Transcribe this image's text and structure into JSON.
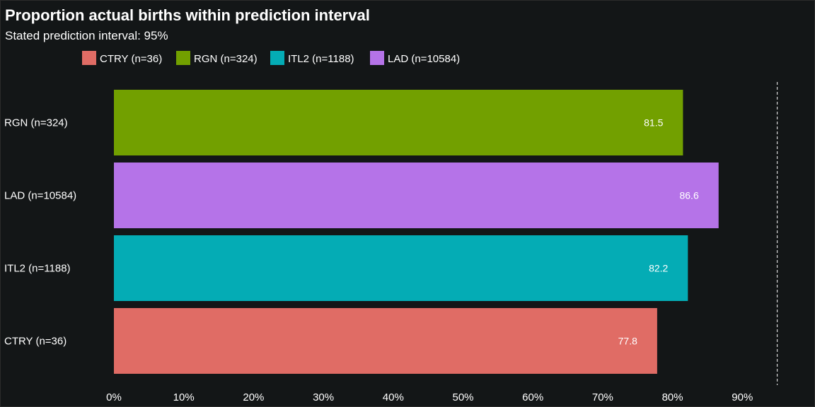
{
  "header": {
    "title": "Proportion actual births within prediction interval",
    "subtitle": "Stated prediction interval: 95%"
  },
  "chart_data": {
    "type": "bar",
    "orientation": "horizontal",
    "title": "Proportion actual births within prediction interval",
    "subtitle": "Stated prediction interval: 95%",
    "xlabel": "",
    "ylabel": "",
    "xlim": [
      0,
      95
    ],
    "x_ticks": [
      "0%",
      "10%",
      "20%",
      "30%",
      "40%",
      "50%",
      "60%",
      "70%",
      "80%",
      "90%"
    ],
    "reference_line": 95,
    "grid": false,
    "legend_placement": "top",
    "legend": [
      {
        "label": "CTRY (n=36)",
        "color": "#e06c65"
      },
      {
        "label": "RGN (n=324)",
        "color": "#72a000"
      },
      {
        "label": "ITL2 (n=1188)",
        "color": "#04acb5"
      },
      {
        "label": "LAD (n=10584)",
        "color": "#b573e8"
      }
    ],
    "bars": [
      {
        "category": "RGN (n=324)",
        "value": 81.5,
        "label": "81.5",
        "color": "#72a000"
      },
      {
        "category": "LAD (n=10584)",
        "value": 86.6,
        "label": "86.6",
        "color": "#b573e8"
      },
      {
        "category": "ITL2 (n=1188)",
        "value": 82.2,
        "label": "82.2",
        "color": "#04acb5"
      },
      {
        "category": "CTRY (n=36)",
        "value": 77.8,
        "label": "77.8",
        "color": "#e06c65"
      }
    ]
  }
}
